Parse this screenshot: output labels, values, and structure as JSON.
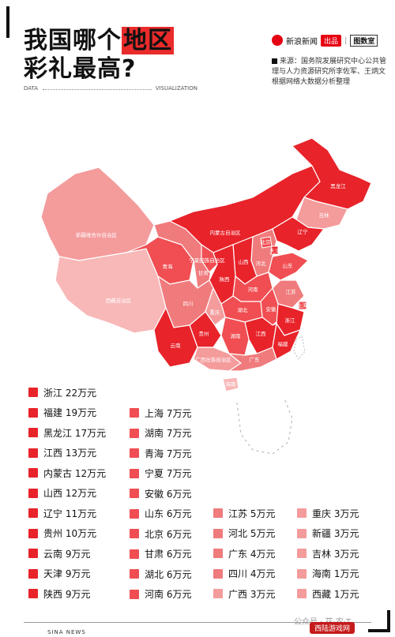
{
  "header": {
    "title_line1_a": "我国哪个",
    "title_line1_b": "地区",
    "title_line2": "彩礼最高?",
    "data_label": "DATA",
    "viz_label": "VISUALIZATION"
  },
  "brand": {
    "sina": "新浪新闻",
    "product": "出品",
    "separator": "|",
    "column": "图数室"
  },
  "source": {
    "text": "来源：国务院发展研究中心公共管理与人力资源研究所李佐军、王炳文根据网络大数据分析整理"
  },
  "colors": {
    "tier_high": "#e8232a",
    "tier_mid": "#f04e52",
    "tier_low1": "#f07b7d",
    "tier_low2": "#f49b9c",
    "tier_low3": "#f8b8b8"
  },
  "chart_data": {
    "type": "table",
    "unit": "万元",
    "rows": [
      {
        "region": "浙江",
        "value": 22,
        "label": "浙江 22万元"
      },
      {
        "region": "福建",
        "value": 19,
        "label": "福建 19万元"
      },
      {
        "region": "黑龙江",
        "value": 17,
        "label": "黑龙江 17万元"
      },
      {
        "region": "江西",
        "value": 13,
        "label": "江西 13万元"
      },
      {
        "region": "内蒙古",
        "value": 12,
        "label": "内蒙古 12万元"
      },
      {
        "region": "山西",
        "value": 12,
        "label": "山西 12万元"
      },
      {
        "region": "辽宁",
        "value": 11,
        "label": "辽宁 11万元"
      },
      {
        "region": "贵州",
        "value": 10,
        "label": "贵州 10万元"
      },
      {
        "region": "云南",
        "value": 9,
        "label": "云南 9万元"
      },
      {
        "region": "天津",
        "value": 9,
        "label": "天津 9万元"
      },
      {
        "region": "陕西",
        "value": 9,
        "label": "陕西 9万元"
      },
      {
        "region": "上海",
        "value": 7,
        "label": "上海 7万元"
      },
      {
        "region": "湖南",
        "value": 7,
        "label": "湖南 7万元"
      },
      {
        "region": "青海",
        "value": 7,
        "label": "青海 7万元"
      },
      {
        "region": "宁夏",
        "value": 7,
        "label": "宁夏 7万元"
      },
      {
        "region": "安徽",
        "value": 6,
        "label": "安徽 6万元"
      },
      {
        "region": "山东",
        "value": 6,
        "label": "山东 6万元"
      },
      {
        "region": "北京",
        "value": 6,
        "label": "北京 6万元"
      },
      {
        "region": "甘肃",
        "value": 6,
        "label": "甘肃 6万元"
      },
      {
        "region": "湖北",
        "value": 6,
        "label": "湖北 6万元"
      },
      {
        "region": "河南",
        "value": 6,
        "label": "河南 6万元"
      },
      {
        "region": "江苏",
        "value": 5,
        "label": "江苏 5万元"
      },
      {
        "region": "河北",
        "value": 5,
        "label": "河北 5万元"
      },
      {
        "region": "广东",
        "value": 4,
        "label": "广东 4万元"
      },
      {
        "region": "四川",
        "value": 4,
        "label": "四川 4万元"
      },
      {
        "region": "广西",
        "value": 3,
        "label": "广西 3万元"
      },
      {
        "region": "重庆",
        "value": 3,
        "label": "重庆 3万元"
      },
      {
        "region": "新疆",
        "value": 3,
        "label": "新疆 3万元"
      },
      {
        "region": "吉林",
        "value": 3,
        "label": "吉林 3万元"
      },
      {
        "region": "海南",
        "value": 1,
        "label": "海南 1万元"
      },
      {
        "region": "西藏",
        "value": 1,
        "label": "西藏 1万元"
      }
    ]
  },
  "map_labels": {
    "xinjiang": "新疆维吾尔自治区",
    "xizang": "西藏自治区",
    "neimenggu": "内蒙古自治区",
    "heilongjiang": "黑龙江",
    "jilin": "吉林",
    "liaoning": "辽宁",
    "beijing": "北京",
    "tianjin": "天津",
    "hebei": "河北",
    "shanxi": "山西",
    "shandong": "山东",
    "ningxia": "宁夏回族自治区",
    "gansu": "甘肃",
    "qinghai": "青海",
    "shaanxi": "陕西",
    "henan": "河南",
    "jiangsu": "江苏",
    "anhui": "安徽",
    "shanghai": "上海",
    "sichuan": "四川",
    "chongqing": "重庆",
    "hubei": "湖北",
    "zhejiang": "浙江",
    "hunan": "湖南",
    "jiangxi": "江西",
    "guizhou": "贵州",
    "yunnan": "云南",
    "guangxi": "广西壮族自治区",
    "guangdong": "广东",
    "fujian": "福建",
    "hainan": "海南"
  },
  "footer": {
    "left": "SINA NEWS",
    "watermark": "公众号 · 花·农·T",
    "site": "西陆游戏网"
  }
}
